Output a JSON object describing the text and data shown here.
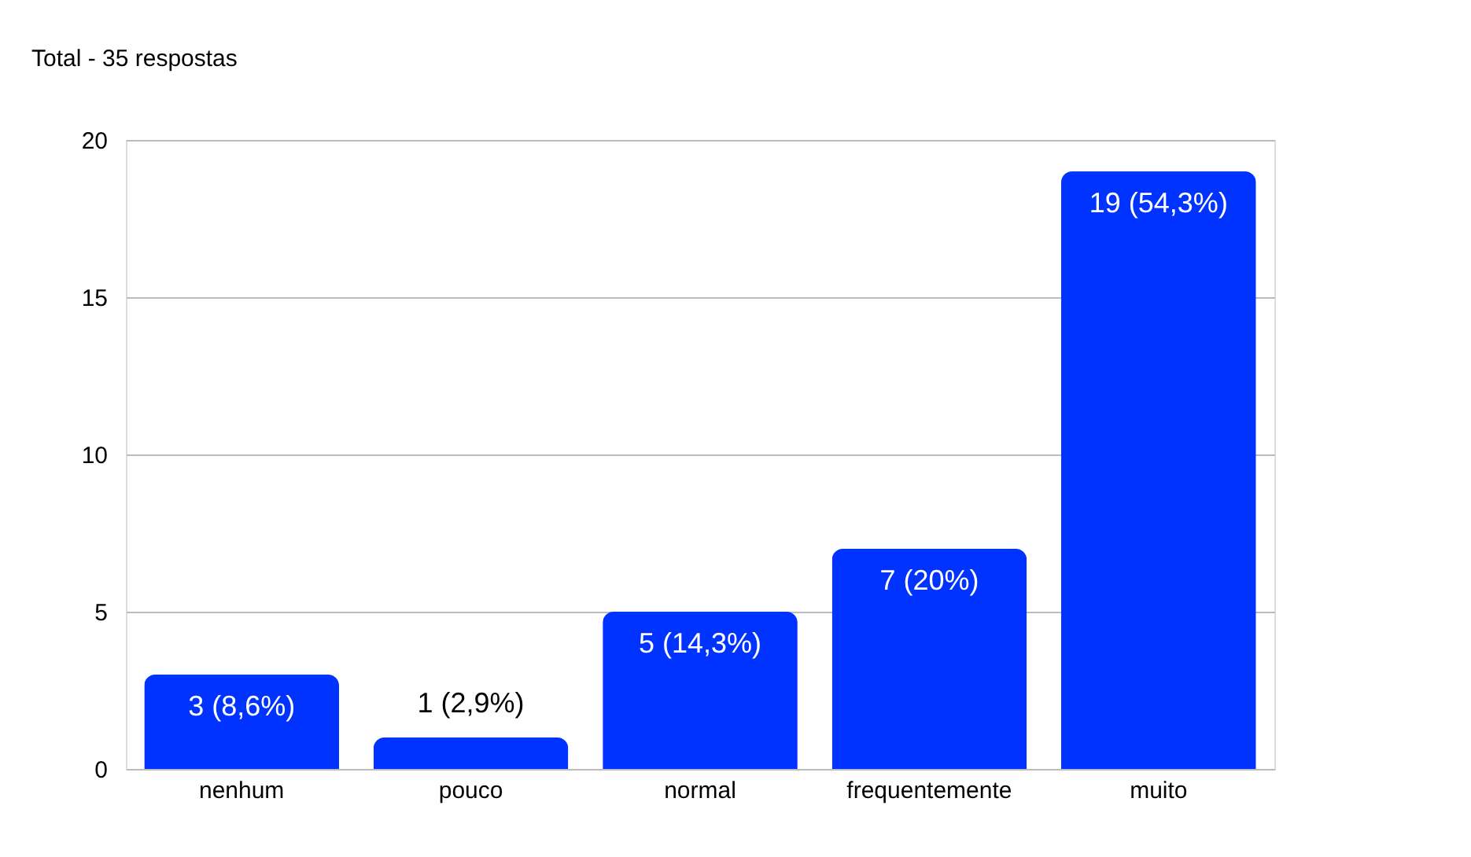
{
  "chart_data": {
    "type": "bar",
    "subtitle": "Total - 35 respostas",
    "categories": [
      "nenhum",
      "pouco",
      "normal",
      "frequentemente",
      "muito"
    ],
    "values": [
      3,
      1,
      5,
      7,
      19
    ],
    "value_labels": [
      "3 (8,6%)",
      "1 (2,9%)",
      "5 (14,3%)",
      "7 (20%)",
      "19 (54,3%)"
    ],
    "color": "#0033ff",
    "ylim": [
      0,
      20
    ],
    "yticks": [
      0,
      5,
      10,
      15,
      20
    ],
    "grid": "y"
  }
}
